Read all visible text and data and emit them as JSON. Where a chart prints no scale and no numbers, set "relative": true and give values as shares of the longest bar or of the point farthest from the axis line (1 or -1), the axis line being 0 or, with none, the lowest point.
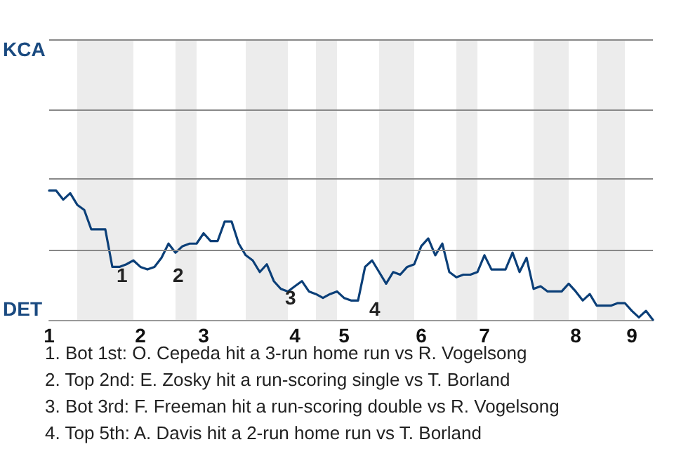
{
  "chart_data": {
    "type": "line",
    "categories": [
      "1",
      null,
      null,
      null,
      null,
      null,
      null,
      null,
      null,
      null,
      null,
      null,
      null,
      "2",
      null,
      null,
      null,
      null,
      null,
      null,
      null,
      null,
      "3",
      null,
      null,
      null,
      null,
      null,
      null,
      null,
      null,
      null,
      null,
      null,
      null,
      "4",
      null,
      null,
      null,
      null,
      null,
      null,
      "5",
      null,
      null,
      null,
      null,
      null,
      null,
      null,
      null,
      null,
      null,
      "6",
      null,
      null,
      null,
      null,
      null,
      null,
      null,
      null,
      "7",
      null,
      null,
      null,
      null,
      null,
      null,
      null,
      null,
      null,
      null,
      null,
      null,
      "8",
      null,
      null,
      null,
      null,
      null,
      null,
      null,
      "9",
      null,
      null,
      null
    ],
    "relative": true,
    "series": [
      {
        "color": "#0b3f78",
        "values": [
          1,
          1,
          0.93,
          0.98,
          0.89,
          0.85,
          0.7,
          0.7,
          0.7,
          0.41,
          0.41,
          0.43,
          0.46,
          0.41,
          0.39,
          0.41,
          0.48,
          0.59,
          0.52,
          0.57,
          0.59,
          0.59,
          0.67,
          0.61,
          0.61,
          0.76,
          0.76,
          0.59,
          0.5,
          0.46,
          0.37,
          0.43,
          0.3,
          0.24,
          0.22,
          0.26,
          0.3,
          0.22,
          0.2,
          0.17,
          0.2,
          0.22,
          0.17,
          0.15,
          0.15,
          0.41,
          0.46,
          0.37,
          0.28,
          0.37,
          0.35,
          0.41,
          0.43,
          0.57,
          0.63,
          0.5,
          0.59,
          0.37,
          0.33,
          0.35,
          0.35,
          0.37,
          0.5,
          0.39,
          0.39,
          0.39,
          0.52,
          0.37,
          0.48,
          0.24,
          0.26,
          0.22,
          0.22,
          0.22,
          0.28,
          0.22,
          0.15,
          0.2,
          0.11,
          0.11,
          0.11,
          0.13,
          0.13,
          0.07,
          0.02,
          0.07,
          0
        ]
      }
    ],
    "ref_lines": [
      {
        "axis": "y",
        "value": 0.54,
        "color": "#888888"
      },
      {
        "axis": "y",
        "value": 1.09,
        "color": "#888888"
      },
      {
        "axis": "y",
        "value": 1.63,
        "color": "#888888"
      },
      {
        "axis": "y",
        "value": 2.17,
        "color": "#888888"
      }
    ],
    "marker": "none",
    "line_style": "solid",
    "annotations": [
      "KCA",
      "DET",
      "1",
      "2",
      "3",
      "4",
      "1. Bot 1st: O. Cepeda hit a 3-run home run vs R. Vogelsong",
      "2. Top 2nd: E. Zosky hit a run-scoring single vs T. Borland",
      "3. Bot 3rd: F. Freeman hit a run-scoring double vs R. Vogelsong",
      "4. Top 5th: A. Davis hit a 2-run home run vs T. Borland"
    ]
  }
}
